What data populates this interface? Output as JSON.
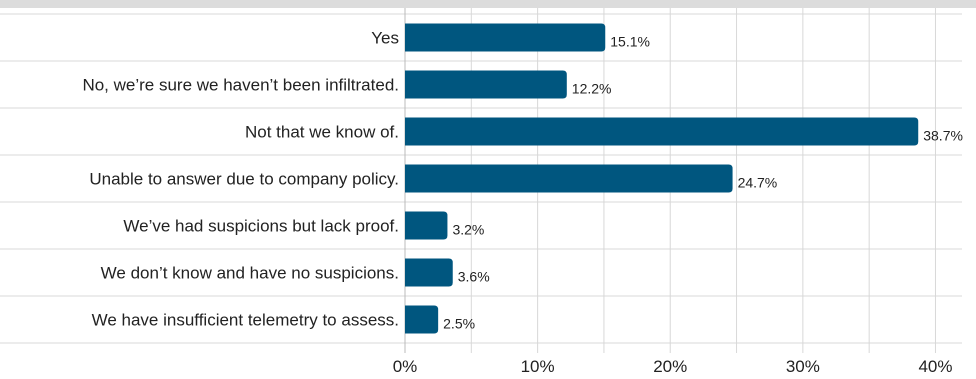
{
  "chart_data": {
    "type": "bar",
    "orientation": "horizontal",
    "title": "",
    "xlabel": "",
    "ylabel": "",
    "categories": [
      "Yes",
      "No, we’re sure we haven’t been infiltrated.",
      "Not that we know of.",
      "Unable to answer due to company policy.",
      "We’ve had suspicions but lack proof.",
      "We don’t know and have no suspicions.",
      "We have insufficient telemetry to assess."
    ],
    "values": [
      15.1,
      12.2,
      38.7,
      24.7,
      3.2,
      3.6,
      2.5
    ],
    "value_labels": [
      "15.1%",
      "12.2%",
      "38.7%",
      "24.7%",
      "3.2%",
      "3.6%",
      "2.5%"
    ],
    "xlim": [
      0,
      42
    ],
    "x_ticks": [
      0,
      10,
      20,
      30,
      40
    ],
    "x_tick_labels": [
      "0%",
      "10%",
      "20%",
      "30%",
      "40%"
    ],
    "grid": true,
    "legend": "none"
  },
  "colors": {
    "bar": "#00567f",
    "grid": "#d8d8d8",
    "top_band": "#dcdcdc",
    "text": "#222222"
  }
}
